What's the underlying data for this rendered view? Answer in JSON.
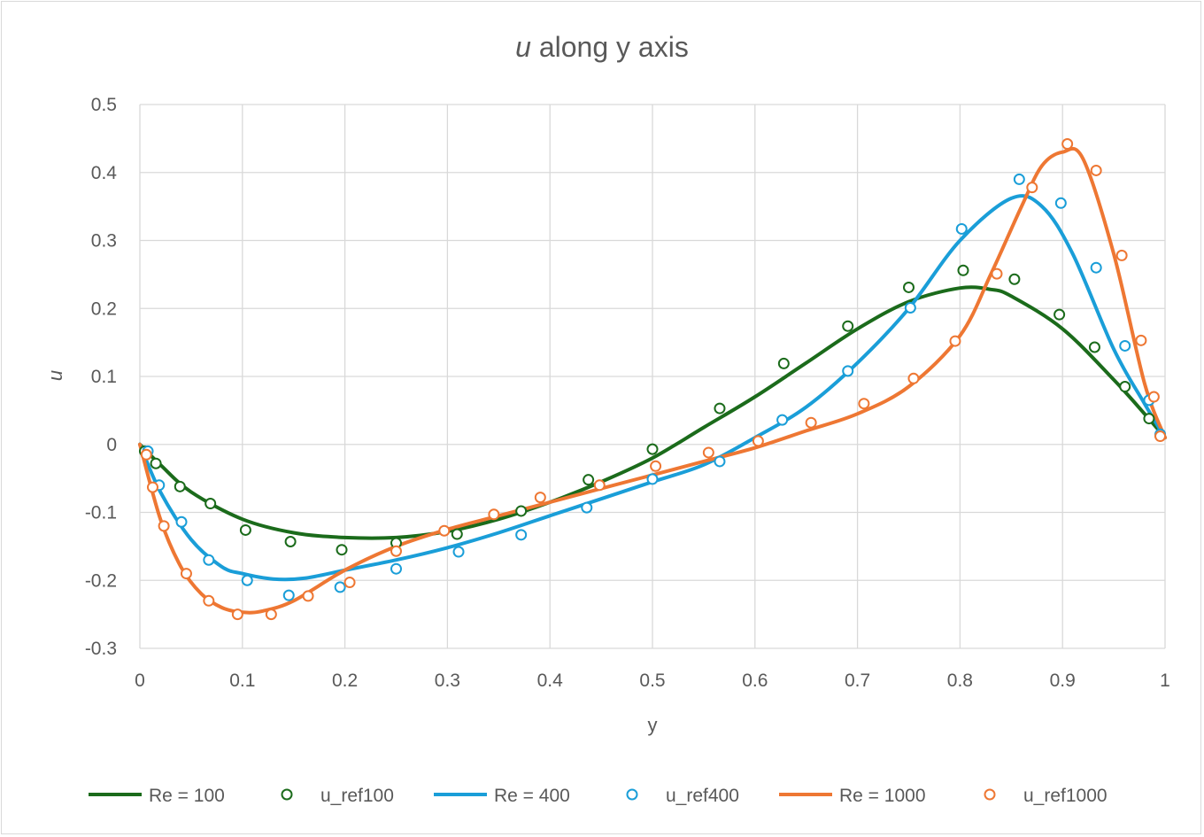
{
  "chart_data": {
    "type": "line",
    "title_italic": "u",
    "title_rest": " along y axis",
    "xlabel": "y",
    "ylabel": "u",
    "xlim": [
      0,
      1
    ],
    "ylim": [
      -0.3,
      0.5
    ],
    "x_ticks": [
      "0",
      "0.1",
      "0.2",
      "0.3",
      "0.4",
      "0.5",
      "0.6",
      "0.7",
      "0.8",
      "0.9",
      "1"
    ],
    "y_ticks": [
      "0.5",
      "0.4",
      "0.3",
      "0.2",
      "0.1",
      "0",
      "-0.1",
      "-0.2",
      "-0.3"
    ],
    "grid": true,
    "legend_position": "bottom",
    "series": [
      {
        "name": "Re = 100",
        "kind": "line",
        "color": "#1b6b1b",
        "x": [
          0,
          0.02,
          0.05,
          0.1,
          0.15,
          0.2,
          0.25,
          0.3,
          0.35,
          0.4,
          0.45,
          0.5,
          0.55,
          0.6,
          0.65,
          0.7,
          0.75,
          0.8,
          0.83,
          0.85,
          0.9,
          0.95,
          0.98,
          1.0
        ],
        "y": [
          0,
          -0.03,
          -0.07,
          -0.11,
          -0.13,
          -0.137,
          -0.137,
          -0.128,
          -0.11,
          -0.085,
          -0.055,
          -0.02,
          0.025,
          0.07,
          0.12,
          0.17,
          0.21,
          0.23,
          0.228,
          0.218,
          0.17,
          0.095,
          0.045,
          0.01
        ]
      },
      {
        "name": "u_ref100",
        "kind": "markers",
        "color": "#1b6b1b",
        "x": [
          0.0047,
          0.0156,
          0.0391,
          0.0688,
          0.1031,
          0.1469,
          0.1969,
          0.25,
          0.3094,
          0.3719,
          0.4375,
          0.5,
          0.5656,
          0.6281,
          0.6906,
          0.75,
          0.8031,
          0.8531,
          0.8969,
          0.9313,
          0.9609,
          0.9844,
          0.9953
        ],
        "y": [
          -0.01,
          -0.028,
          -0.062,
          -0.087,
          -0.126,
          -0.143,
          -0.155,
          -0.145,
          -0.132,
          -0.098,
          -0.052,
          -0.007,
          0.053,
          0.119,
          0.174,
          0.231,
          0.256,
          0.243,
          0.191,
          0.143,
          0.085,
          0.038,
          0.013
        ]
      },
      {
        "name": "Re = 400",
        "kind": "line",
        "color": "#1a9ed8",
        "x": [
          0,
          0.02,
          0.05,
          0.08,
          0.1,
          0.13,
          0.16,
          0.2,
          0.25,
          0.3,
          0.35,
          0.4,
          0.45,
          0.5,
          0.55,
          0.6,
          0.65,
          0.7,
          0.75,
          0.8,
          0.85,
          0.88,
          0.91,
          0.95,
          0.98,
          1.0
        ],
        "y": [
          0,
          -0.07,
          -0.14,
          -0.18,
          -0.19,
          -0.198,
          -0.197,
          -0.185,
          -0.17,
          -0.152,
          -0.13,
          -0.105,
          -0.08,
          -0.055,
          -0.03,
          0.01,
          0.055,
          0.12,
          0.2,
          0.3,
          0.362,
          0.35,
          0.28,
          0.14,
          0.06,
          0.01
        ]
      },
      {
        "name": "u_ref400",
        "kind": "markers",
        "color": "#1a9ed8",
        "x": [
          0.0078,
          0.0188,
          0.0406,
          0.0672,
          0.1047,
          0.1453,
          0.1953,
          0.25,
          0.3109,
          0.3719,
          0.4359,
          0.5,
          0.5656,
          0.6266,
          0.6906,
          0.7516,
          0.8016,
          0.8578,
          0.8984,
          0.9328,
          0.9609,
          0.9844,
          0.9953
        ],
        "y": [
          -0.01,
          -0.06,
          -0.114,
          -0.17,
          -0.2,
          -0.222,
          -0.21,
          -0.183,
          -0.158,
          -0.133,
          -0.093,
          -0.051,
          -0.025,
          0.036,
          0.108,
          0.201,
          0.317,
          0.39,
          0.355,
          0.26,
          0.145,
          0.065,
          0.015
        ]
      },
      {
        "name": "Re = 1000",
        "kind": "line",
        "color": "#ee7733",
        "x": [
          0,
          0.02,
          0.04,
          0.06,
          0.08,
          0.1,
          0.12,
          0.15,
          0.2,
          0.25,
          0.3,
          0.35,
          0.4,
          0.45,
          0.5,
          0.55,
          0.6,
          0.65,
          0.7,
          0.75,
          0.8,
          0.83,
          0.86,
          0.88,
          0.9,
          0.92,
          0.95,
          0.98,
          1.0
        ],
        "y": [
          0,
          -0.11,
          -0.18,
          -0.22,
          -0.24,
          -0.247,
          -0.245,
          -0.23,
          -0.185,
          -0.15,
          -0.125,
          -0.105,
          -0.085,
          -0.065,
          -0.045,
          -0.025,
          -0.005,
          0.02,
          0.045,
          0.085,
          0.16,
          0.25,
          0.35,
          0.41,
          0.43,
          0.42,
          0.28,
          0.09,
          0.01
        ]
      },
      {
        "name": "u_ref1000",
        "kind": "markers",
        "color": "#ee7733",
        "x": [
          0.0063,
          0.0125,
          0.0234,
          0.0453,
          0.0672,
          0.0953,
          0.1281,
          0.1641,
          0.2047,
          0.25,
          0.2969,
          0.3453,
          0.3906,
          0.4484,
          0.5031,
          0.5547,
          0.6031,
          0.6547,
          0.7063,
          0.7547,
          0.7953,
          0.8359,
          0.8703,
          0.9047,
          0.9328,
          0.9578,
          0.9766,
          0.9891,
          0.9953
        ],
        "y": [
          -0.015,
          -0.063,
          -0.12,
          -0.19,
          -0.23,
          -0.25,
          -0.25,
          -0.223,
          -0.203,
          -0.157,
          -0.127,
          -0.103,
          -0.078,
          -0.06,
          -0.032,
          -0.012,
          0.005,
          0.032,
          0.06,
          0.097,
          0.152,
          0.251,
          0.378,
          0.442,
          0.403,
          0.278,
          0.153,
          0.07,
          0.012
        ]
      }
    ]
  }
}
